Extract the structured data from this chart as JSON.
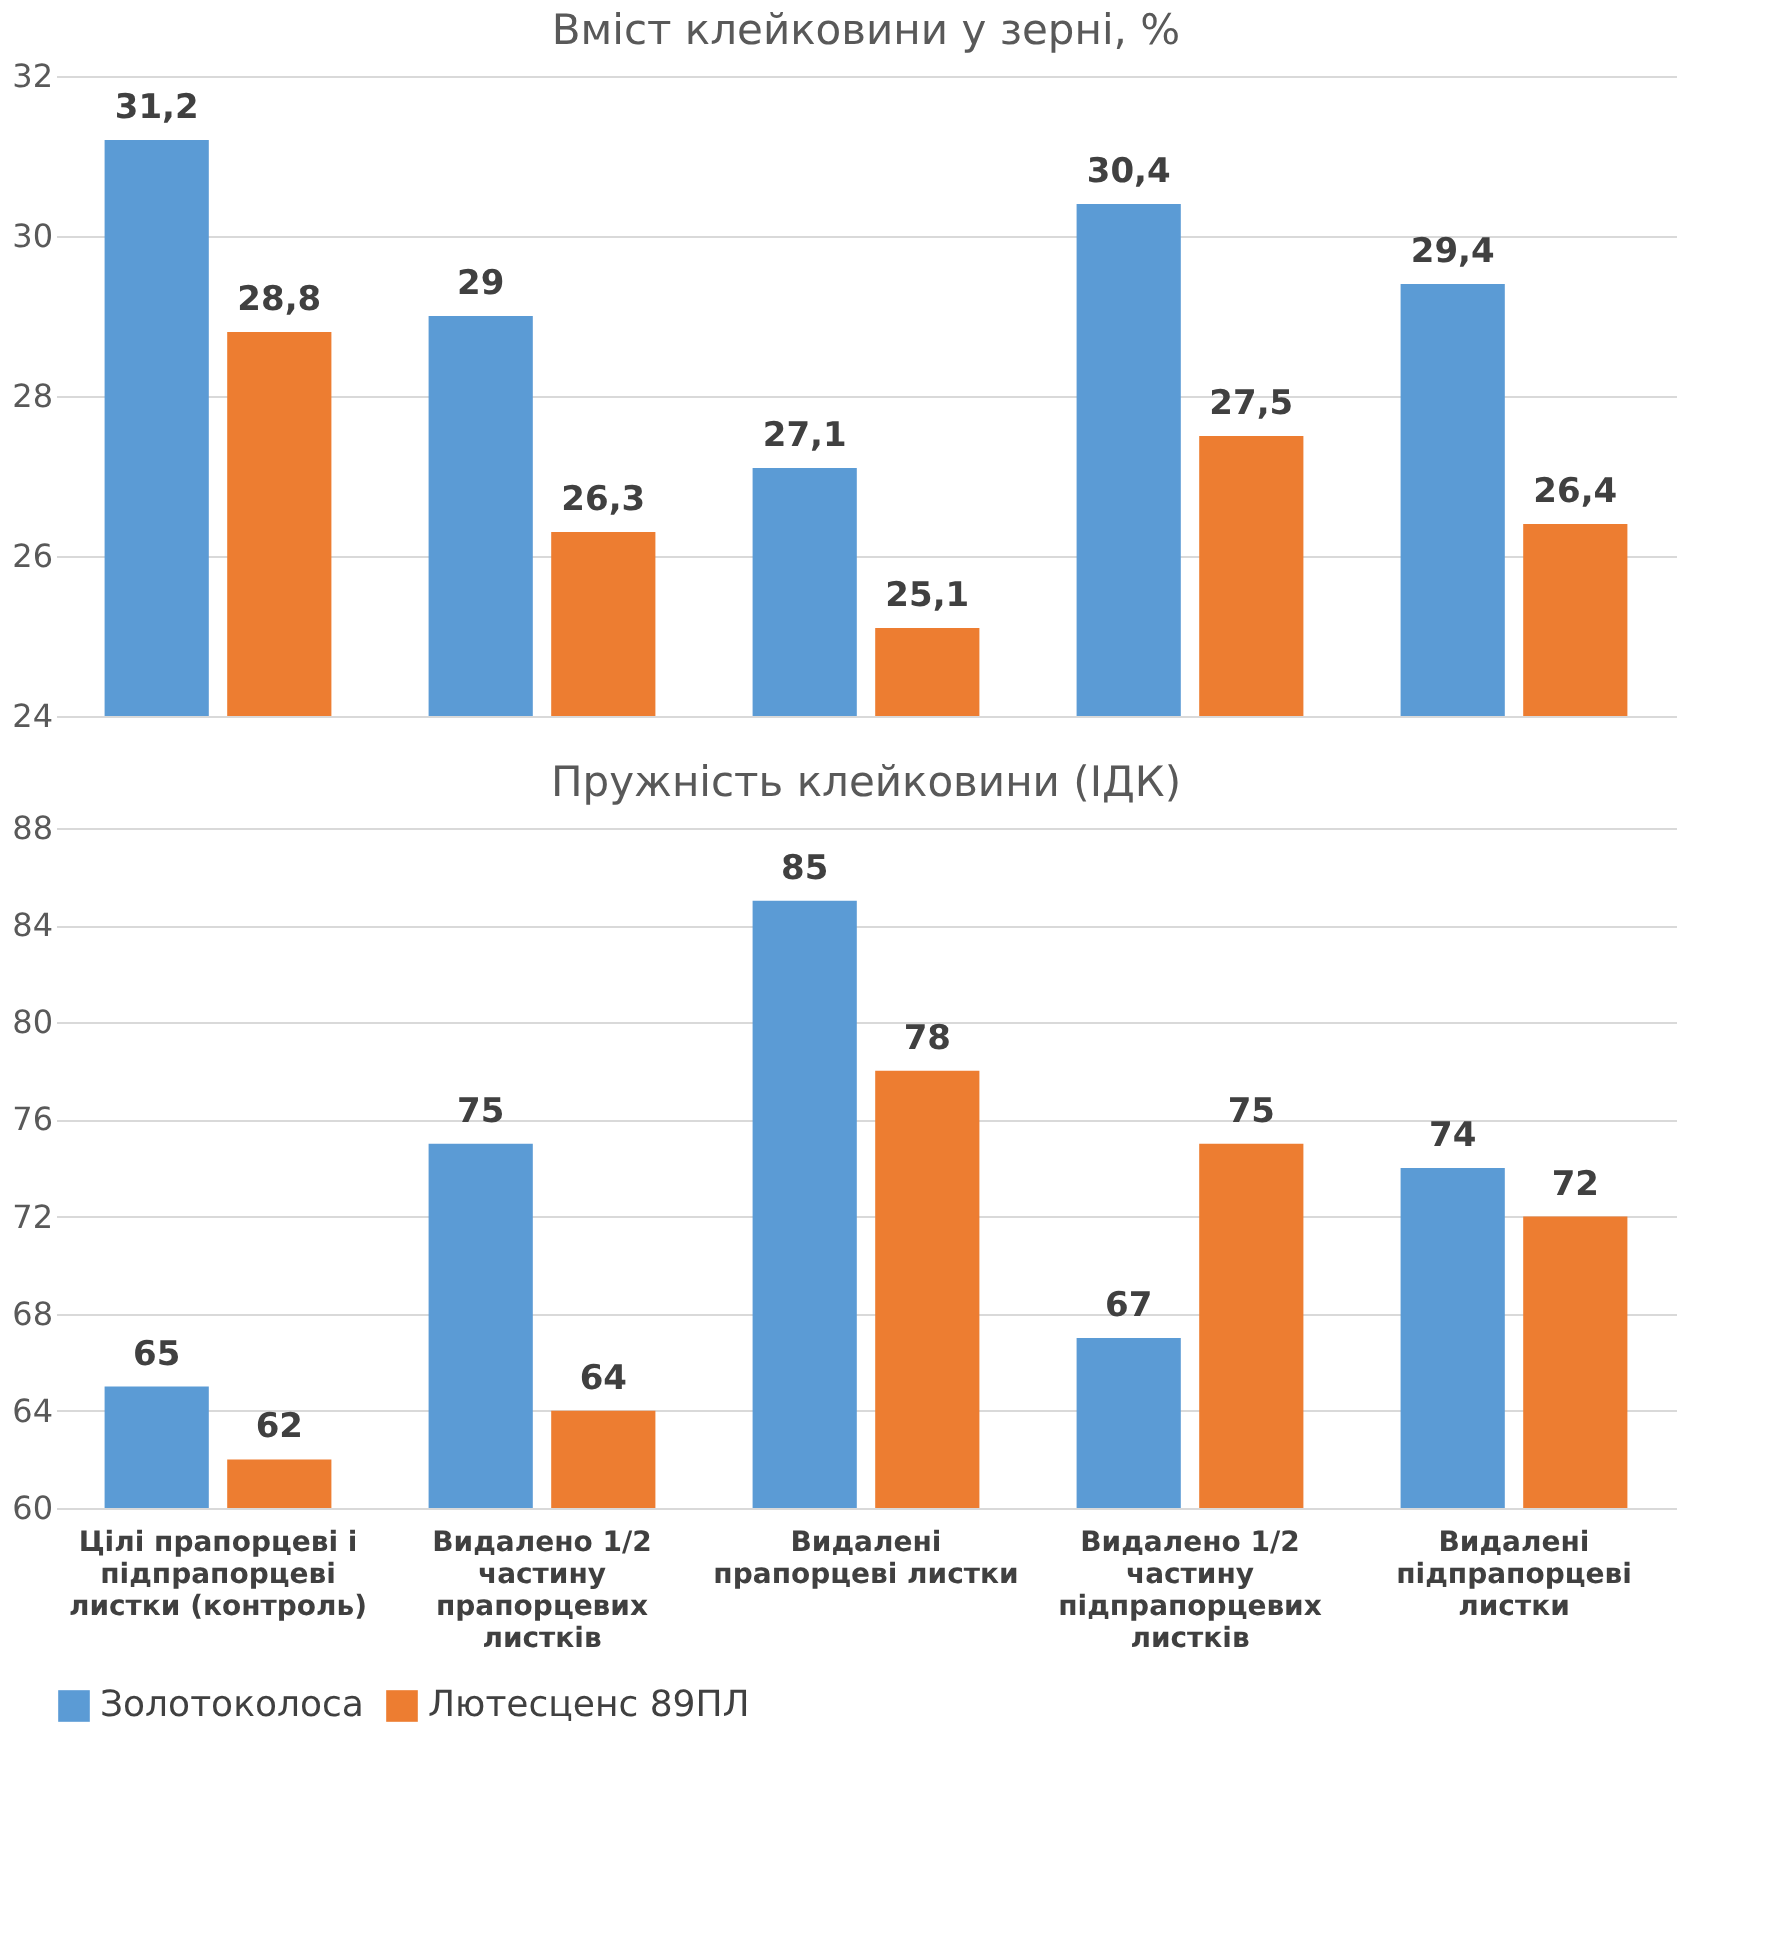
{
  "chart_data": [
    {
      "type": "bar",
      "title": "Вміст клейковини у зерні, %",
      "categories": [
        "Цілі прапорцеві і підпрапорцеві листки (контроль)",
        "Видалено 1/2 частину прапорцевих листків",
        "Видалені прапорцеві листки",
        "Видалено 1/2 частину підпрапорцевих листків",
        "Видалені підпрапорцеві листки"
      ],
      "series": [
        {
          "name": "Золотоколоса",
          "color": "#5b9bd5",
          "values": [
            31.2,
            29,
            27.1,
            30.4,
            29.4
          ],
          "value_labels": [
            "31,2",
            "29",
            "27,1",
            "30,4",
            "29,4"
          ]
        },
        {
          "name": "Лютесценс 89ПЛ",
          "color": "#ed7d31",
          "values": [
            28.8,
            26.3,
            25.1,
            27.5,
            26.4
          ],
          "value_labels": [
            "28,8",
            "26,3",
            "25,1",
            "27,5",
            "26,4"
          ]
        }
      ],
      "ylim": [
        24,
        32
      ],
      "yticks": [
        24,
        26,
        28,
        30,
        32
      ],
      "grid": "y",
      "tick_labels": "y",
      "legend": "bottom"
    },
    {
      "type": "bar",
      "title": "Пружність клейковини (ІДК)",
      "categories": [
        "Цілі прапорцеві і підпрапорцеві листки (контроль)",
        "Видалено 1/2 частину прапорцевих листків",
        "Видалені прапорцеві листки",
        "Видалено 1/2 частину підпрапорцевих листків",
        "Видалені підпрапорцеві листки"
      ],
      "series": [
        {
          "name": "Золотоколоса",
          "color": "#5b9bd5",
          "values": [
            65,
            75,
            85,
            67,
            74
          ],
          "value_labels": [
            "65",
            "75",
            "85",
            "67",
            "74"
          ]
        },
        {
          "name": "Лютесценс 89ПЛ",
          "color": "#ed7d31",
          "values": [
            62,
            64,
            78,
            75,
            72
          ],
          "value_labels": [
            "62",
            "64",
            "78",
            "75",
            "72"
          ]
        }
      ],
      "ylim": [
        60,
        88
      ],
      "yticks": [
        60,
        64,
        68,
        72,
        76,
        80,
        84,
        88
      ],
      "grid": "y",
      "legend": "bottom"
    }
  ]
}
